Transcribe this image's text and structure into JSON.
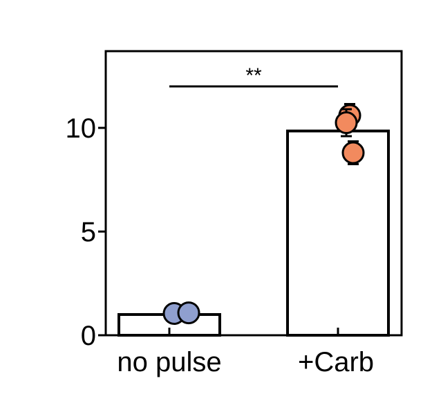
{
  "chart_data": {
    "type": "bar",
    "title": "",
    "xlabel": "",
    "ylabel": "",
    "categories": [
      "no pulse",
      "+Carb"
    ],
    "values": [
      1.0,
      9.85
    ],
    "ylim": [
      0,
      13.7
    ],
    "yticks": [
      0,
      5,
      10
    ],
    "grid": false,
    "bar_fill": "#ffffff",
    "bar_edge": "#000000",
    "points": [
      {
        "category": "no pulse",
        "color": "#8f9fcf",
        "items": [
          {
            "y": 1.05,
            "err": 0.18
          },
          {
            "y": 1.08,
            "err": 0.15
          }
        ]
      },
      {
        "category": "+Carb",
        "color": "#f28a5e",
        "items": [
          {
            "y": 10.6,
            "err": 0.55
          },
          {
            "y": 10.25,
            "err": 0.65
          },
          {
            "y": 8.8,
            "err": 0.55
          }
        ]
      }
    ],
    "significance": {
      "label": "**",
      "from": "no pulse",
      "to": "+Carb",
      "y": 12.0
    }
  }
}
